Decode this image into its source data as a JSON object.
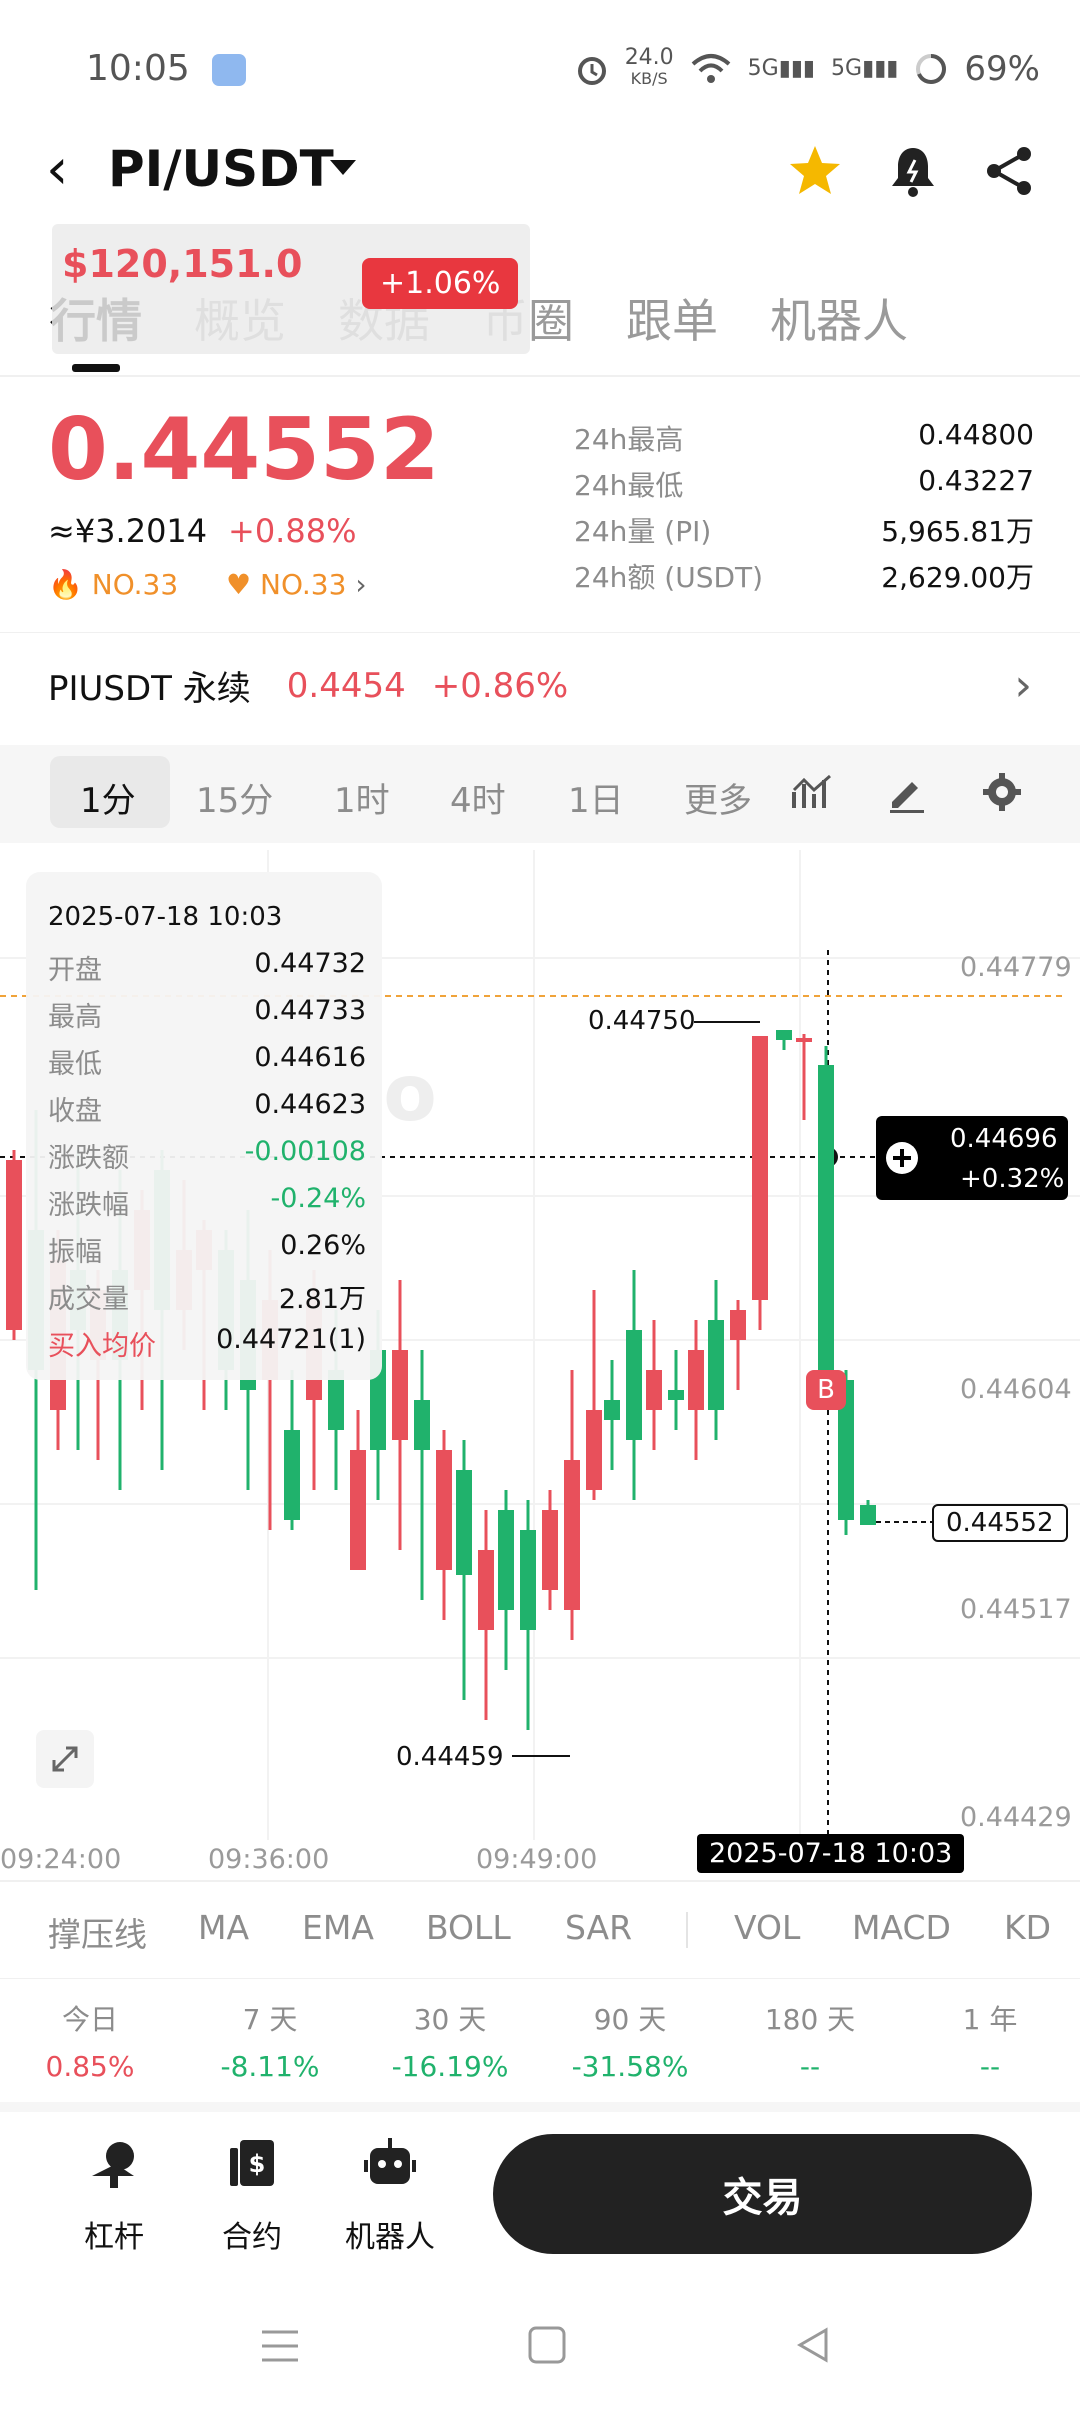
{
  "status_bar": {
    "time": "10:05",
    "net_speed": "24.0",
    "net_unit": "KB/S",
    "signal1": "5G",
    "signal2": "5G",
    "battery": "69%"
  },
  "header": {
    "pair": "PI/USDT"
  },
  "overlay": {
    "price": "$120,151.0",
    "change": "+1.06%"
  },
  "tabs": [
    "行情",
    "概览",
    "数据",
    "币圈",
    "跟单",
    "机器人"
  ],
  "price": {
    "last": "0.44552",
    "cny": "≈¥3.2014",
    "change": "+0.88%",
    "rank1": "NO.33",
    "rank2": "NO.33"
  },
  "stats": [
    {
      "k": "24h最高",
      "v": "0.44800"
    },
    {
      "k": "24h最低",
      "v": "0.43227"
    },
    {
      "k": "24h量 (PI)",
      "v": "5,965.81万"
    },
    {
      "k": "24h额 (USDT)",
      "v": "2,629.00万"
    }
  ],
  "perpetual": {
    "label": "PIUSDT 永续",
    "price": "0.4454",
    "change": "+0.86%"
  },
  "timeframes": [
    "1分",
    "15分",
    "1时",
    "4时",
    "1日",
    "更多"
  ],
  "chart": {
    "y_ticks": [
      "0.44779",
      "0.44604",
      "0.44517",
      "0.44429"
    ],
    "x_ticks": [
      "09:24:00",
      "09:36:00",
      "09:49:00"
    ],
    "cursor_time": "2025-07-18 10:03",
    "cursor_price": "0.44696",
    "cursor_change": "+0.32%",
    "last_price_tag": "0.44552",
    "high_marker": "0.44750",
    "low_marker": "0.44459",
    "buy_marker": "B",
    "watermark": "Gate.io"
  },
  "info_card": {
    "date": "2025-07-18 10:03",
    "rows": [
      {
        "k": "开盘",
        "v": "0.44732"
      },
      {
        "k": "最高",
        "v": "0.44733"
      },
      {
        "k": "最低",
        "v": "0.44616"
      },
      {
        "k": "收盘",
        "v": "0.44623"
      },
      {
        "k": "涨跌额",
        "v": "-0.00108"
      },
      {
        "k": "涨跌幅",
        "v": "-0.24%"
      },
      {
        "k": "振幅",
        "v": "0.26%"
      },
      {
        "k": "成交量",
        "v": "2.81万"
      },
      {
        "k": "买入均价",
        "v": "0.44721(1)"
      }
    ]
  },
  "indicators": [
    "撑压线",
    "MA",
    "EMA",
    "BOLL",
    "SAR",
    "VOL",
    "MACD",
    "KD"
  ],
  "performance": [
    {
      "k": "今日",
      "v": "0.85%"
    },
    {
      "k": "7 天",
      "v": "-8.11%"
    },
    {
      "k": "30 天",
      "v": "-16.19%"
    },
    {
      "k": "90 天",
      "v": "-31.58%"
    },
    {
      "k": "180 天",
      "v": "--"
    },
    {
      "k": "1 年",
      "v": "--"
    }
  ],
  "bottom_nav": {
    "leverage": "杠杆",
    "contract": "合约",
    "robot": "机器人",
    "trade": "交易"
  },
  "colors": {
    "up": "#e8505b",
    "down": "#20b26c",
    "accent": "#f0902a"
  }
}
